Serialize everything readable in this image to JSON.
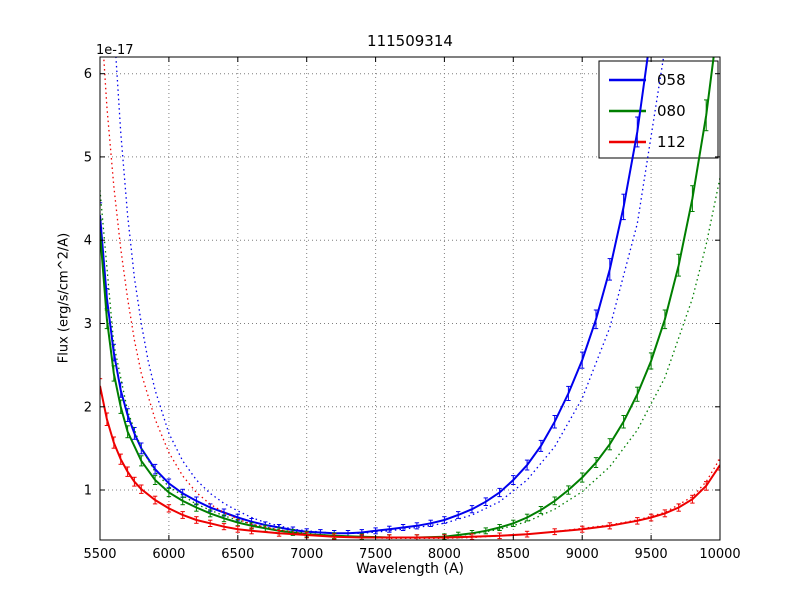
{
  "chart_data": {
    "type": "line",
    "title": "111509314",
    "xlabel": "Wavelength (A)",
    "ylabel": "Flux (erg/s/cm^2/A)",
    "y_offset_label": "1e-17",
    "xlim": [
      5500,
      10000
    ],
    "ylim": [
      0.4,
      6.2
    ],
    "xticks": [
      5500,
      6000,
      6500,
      7000,
      7500,
      8000,
      8500,
      9000,
      9500,
      10000
    ],
    "yticks": [
      1,
      2,
      3,
      4,
      5,
      6
    ],
    "grid": true,
    "legend_position": "upper right",
    "legend_labels": [
      "058",
      "080",
      "112"
    ],
    "colors": {
      "blue": "#0000ee",
      "green": "#007f00",
      "red": "#ee0000"
    },
    "series": [
      {
        "name": "058",
        "color": "#0000ee",
        "style": "solid",
        "errorbars": true,
        "in_legend": true,
        "x": [
          5500,
          5550,
          5600,
          5650,
          5700,
          5750,
          5800,
          5900,
          6000,
          6100,
          6200,
          6300,
          6400,
          6500,
          6600,
          6700,
          6800,
          6900,
          7000,
          7100,
          7200,
          7300,
          7400,
          7500,
          7600,
          7700,
          7800,
          7900,
          8000,
          8100,
          8200,
          8300,
          8400,
          8500,
          8600,
          8700,
          8800,
          8900,
          9000,
          9100,
          9200,
          9300,
          9400,
          9500
        ],
        "y": [
          4.3,
          3.3,
          2.65,
          2.2,
          1.9,
          1.68,
          1.5,
          1.25,
          1.08,
          0.96,
          0.87,
          0.79,
          0.73,
          0.67,
          0.62,
          0.58,
          0.55,
          0.52,
          0.5,
          0.49,
          0.48,
          0.48,
          0.49,
          0.51,
          0.53,
          0.55,
          0.57,
          0.6,
          0.64,
          0.7,
          0.77,
          0.86,
          0.97,
          1.12,
          1.3,
          1.53,
          1.82,
          2.16,
          2.56,
          3.05,
          3.65,
          4.4,
          5.3,
          6.5
        ]
      },
      {
        "name": "058-model",
        "color": "#0000ee",
        "style": "dotted",
        "errorbars": false,
        "in_legend": false,
        "x": [
          5600,
          5650,
          5700,
          5750,
          5800,
          5850,
          5900,
          6000,
          6100,
          6200,
          6300,
          6400,
          6500,
          6600,
          6700,
          6800,
          6900,
          7000,
          7200,
          7400,
          7600,
          7800,
          8000,
          8200,
          8400,
          8600,
          8800,
          9000,
          9200,
          9400,
          9600
        ],
        "y": [
          6.6,
          5.3,
          4.3,
          3.55,
          3.0,
          2.55,
          2.2,
          1.68,
          1.35,
          1.12,
          0.96,
          0.84,
          0.75,
          0.67,
          0.61,
          0.57,
          0.53,
          0.51,
          0.48,
          0.48,
          0.51,
          0.55,
          0.6,
          0.7,
          0.86,
          1.12,
          1.52,
          2.1,
          2.95,
          4.2,
          6.3
        ]
      },
      {
        "name": "080",
        "color": "#007f00",
        "style": "solid",
        "errorbars": true,
        "in_legend": true,
        "x": [
          5500,
          5550,
          5600,
          5650,
          5700,
          5800,
          5900,
          6000,
          6100,
          6200,
          6300,
          6400,
          6500,
          6600,
          6700,
          6800,
          6900,
          7000,
          7200,
          7400,
          7600,
          7800,
          8000,
          8100,
          8200,
          8300,
          8400,
          8500,
          8600,
          8700,
          8800,
          8900,
          9000,
          9100,
          9200,
          9300,
          9400,
          9500,
          9600,
          9700,
          9800,
          9900,
          10000
        ],
        "y": [
          4.1,
          3.05,
          2.4,
          2.0,
          1.7,
          1.35,
          1.12,
          0.97,
          0.87,
          0.79,
          0.72,
          0.66,
          0.61,
          0.57,
          0.54,
          0.51,
          0.49,
          0.47,
          0.45,
          0.44,
          0.43,
          0.43,
          0.44,
          0.46,
          0.48,
          0.51,
          0.55,
          0.6,
          0.67,
          0.76,
          0.87,
          1.0,
          1.15,
          1.33,
          1.55,
          1.82,
          2.15,
          2.55,
          3.05,
          3.7,
          4.5,
          5.5,
          6.8
        ]
      },
      {
        "name": "080-model",
        "color": "#007f00",
        "style": "dotted",
        "errorbars": false,
        "in_legend": false,
        "x": [
          5500,
          5600,
          5700,
          5800,
          5900,
          6000,
          6200,
          6400,
          6600,
          6800,
          7000,
          7200,
          7400,
          7600,
          7800,
          8000,
          8200,
          8400,
          8600,
          8800,
          9000,
          9200,
          9400,
          9600,
          9800,
          9900,
          10000
        ],
        "y": [
          4.6,
          2.75,
          1.95,
          1.5,
          1.22,
          1.04,
          0.83,
          0.69,
          0.59,
          0.52,
          0.48,
          0.45,
          0.44,
          0.43,
          0.43,
          0.44,
          0.47,
          0.53,
          0.62,
          0.77,
          0.98,
          1.28,
          1.72,
          2.35,
          3.3,
          3.95,
          4.75
        ]
      },
      {
        "name": "112",
        "color": "#ee0000",
        "style": "solid",
        "errorbars": true,
        "in_legend": true,
        "x": [
          5500,
          5550,
          5600,
          5650,
          5700,
          5750,
          5800,
          5900,
          6000,
          6100,
          6200,
          6300,
          6400,
          6500,
          6600,
          6800,
          7000,
          7200,
          7400,
          7600,
          7800,
          8000,
          8200,
          8400,
          8600,
          8800,
          9000,
          9200,
          9400,
          9500,
          9600,
          9700,
          9800,
          9900,
          10000
        ],
        "y": [
          2.25,
          1.85,
          1.57,
          1.37,
          1.22,
          1.1,
          1.01,
          0.88,
          0.78,
          0.7,
          0.64,
          0.6,
          0.56,
          0.53,
          0.51,
          0.48,
          0.46,
          0.44,
          0.43,
          0.43,
          0.43,
          0.43,
          0.44,
          0.45,
          0.47,
          0.5,
          0.53,
          0.57,
          0.63,
          0.67,
          0.72,
          0.79,
          0.89,
          1.05,
          1.3
        ]
      },
      {
        "name": "112-model",
        "color": "#ee0000",
        "style": "dotted",
        "errorbars": false,
        "in_legend": false,
        "x": [
          5500,
          5550,
          5600,
          5650,
          5700,
          5750,
          5800,
          5900,
          6000,
          6100,
          6200,
          6300,
          6400,
          6500,
          6600,
          6800,
          7000,
          7200,
          7400,
          7600,
          7800,
          8000,
          8200,
          8400,
          8600,
          8800,
          9000,
          9200,
          9400,
          9600,
          9800,
          9900,
          10000
        ],
        "y": [
          6.9,
          5.6,
          4.65,
          3.9,
          3.3,
          2.8,
          2.4,
          1.85,
          1.45,
          1.17,
          0.97,
          0.83,
          0.73,
          0.65,
          0.59,
          0.52,
          0.47,
          0.44,
          0.43,
          0.42,
          0.42,
          0.42,
          0.43,
          0.45,
          0.47,
          0.5,
          0.54,
          0.58,
          0.64,
          0.73,
          0.92,
          1.1,
          1.38
        ]
      }
    ]
  }
}
